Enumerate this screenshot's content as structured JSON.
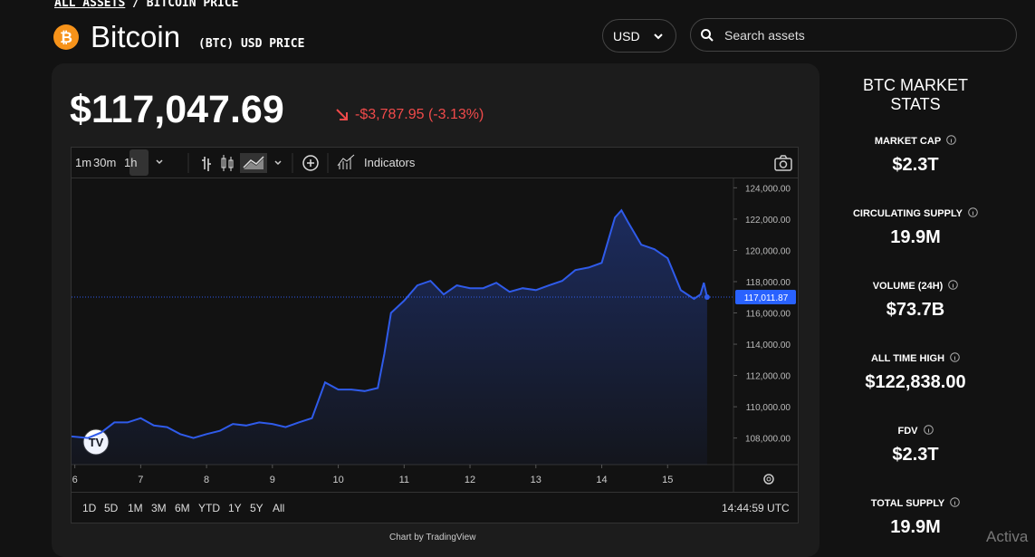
{
  "breadcrumb": {
    "link": "ALL ASSETS",
    "separator": "/",
    "current": "BITCOIN PRICE"
  },
  "header": {
    "title": "Bitcoin",
    "subtitle": "(BTC) USD PRICE",
    "currency": "USD",
    "search_placeholder": "Search assets"
  },
  "price": {
    "value": "$117,047.69",
    "change": "-$3,787.95 (-3.13%)"
  },
  "toolbar": {
    "intervals": [
      "1m",
      "30m",
      "1h"
    ],
    "indicators": "Indicators"
  },
  "chart_data": {
    "type": "line",
    "x": [
      5.95,
      6.2,
      6.4,
      6.6,
      6.8,
      7.0,
      7.2,
      7.4,
      7.6,
      7.8,
      8.0,
      8.2,
      8.4,
      8.6,
      8.8,
      9.0,
      9.2,
      9.4,
      9.6,
      9.8,
      10.0,
      10.2,
      10.4,
      10.6,
      10.7,
      10.8,
      11.0,
      11.2,
      11.4,
      11.6,
      11.8,
      12.0,
      12.2,
      12.4,
      12.6,
      12.8,
      13.0,
      13.2,
      13.4,
      13.6,
      13.8,
      14.0,
      14.2,
      14.3,
      14.4,
      14.6,
      14.8,
      15.0,
      15.2,
      15.4,
      15.5,
      15.55,
      15.6
    ],
    "series": [
      {
        "name": "BTC",
        "color": "#2f5bea",
        "values": [
          108100,
          108000,
          108350,
          109000,
          109000,
          109270,
          108800,
          108700,
          108250,
          108000,
          108250,
          108460,
          108900,
          108800,
          109000,
          108900,
          108700,
          109000,
          109270,
          111560,
          111100,
          111100,
          111000,
          111200,
          113400,
          116000,
          116780,
          117760,
          118050,
          117180,
          117760,
          117580,
          117580,
          117930,
          117350,
          117580,
          117460,
          117760,
          118050,
          118740,
          118900,
          119200,
          122100,
          122560,
          121800,
          120360,
          120070,
          119500,
          117460,
          116900,
          117180,
          117930,
          117010
        ]
      }
    ],
    "xlim": [
      5.95,
      16
    ],
    "xticks": [
      6,
      7,
      8,
      9,
      10,
      11,
      12,
      13,
      14,
      15
    ],
    "ylim": [
      106300,
      124600
    ],
    "yticks": [
      {
        "value": 108000,
        "label": "108,000.00"
      },
      {
        "value": 110000,
        "label": "110,000.00"
      },
      {
        "value": 112000,
        "label": "112,000.00"
      },
      {
        "value": 114000,
        "label": "114,000.00"
      },
      {
        "value": 116000,
        "label": "116,000.00"
      },
      {
        "value": 118000,
        "label": "118,000.00"
      },
      {
        "value": 120000,
        "label": "120,000.00"
      },
      {
        "value": 122000,
        "label": "122,000.00"
      },
      {
        "value": 124000,
        "label": "124,000.00"
      }
    ],
    "price_line": {
      "value": 117011.87,
      "label": "117,011.87"
    }
  },
  "ranges": [
    "1D",
    "5D",
    "1M",
    "3M",
    "6M",
    "YTD",
    "1Y",
    "5Y",
    "All"
  ],
  "time": "14:44:59 UTC",
  "credit": "Chart by TradingView",
  "stats": {
    "title": "BTC MARKET STATS",
    "items": [
      {
        "label": "MARKET CAP",
        "value": "$2.3T"
      },
      {
        "label": "CIRCULATING SUPPLY",
        "value": "19.9M"
      },
      {
        "label": "VOLUME (24H)",
        "value": "$73.7B"
      },
      {
        "label": "ALL TIME HIGH",
        "value": "$122,838.00"
      },
      {
        "label": "FDV",
        "value": "$2.3T"
      },
      {
        "label": "TOTAL SUPPLY",
        "value": "19.9M"
      }
    ]
  },
  "watermark": "Activa"
}
